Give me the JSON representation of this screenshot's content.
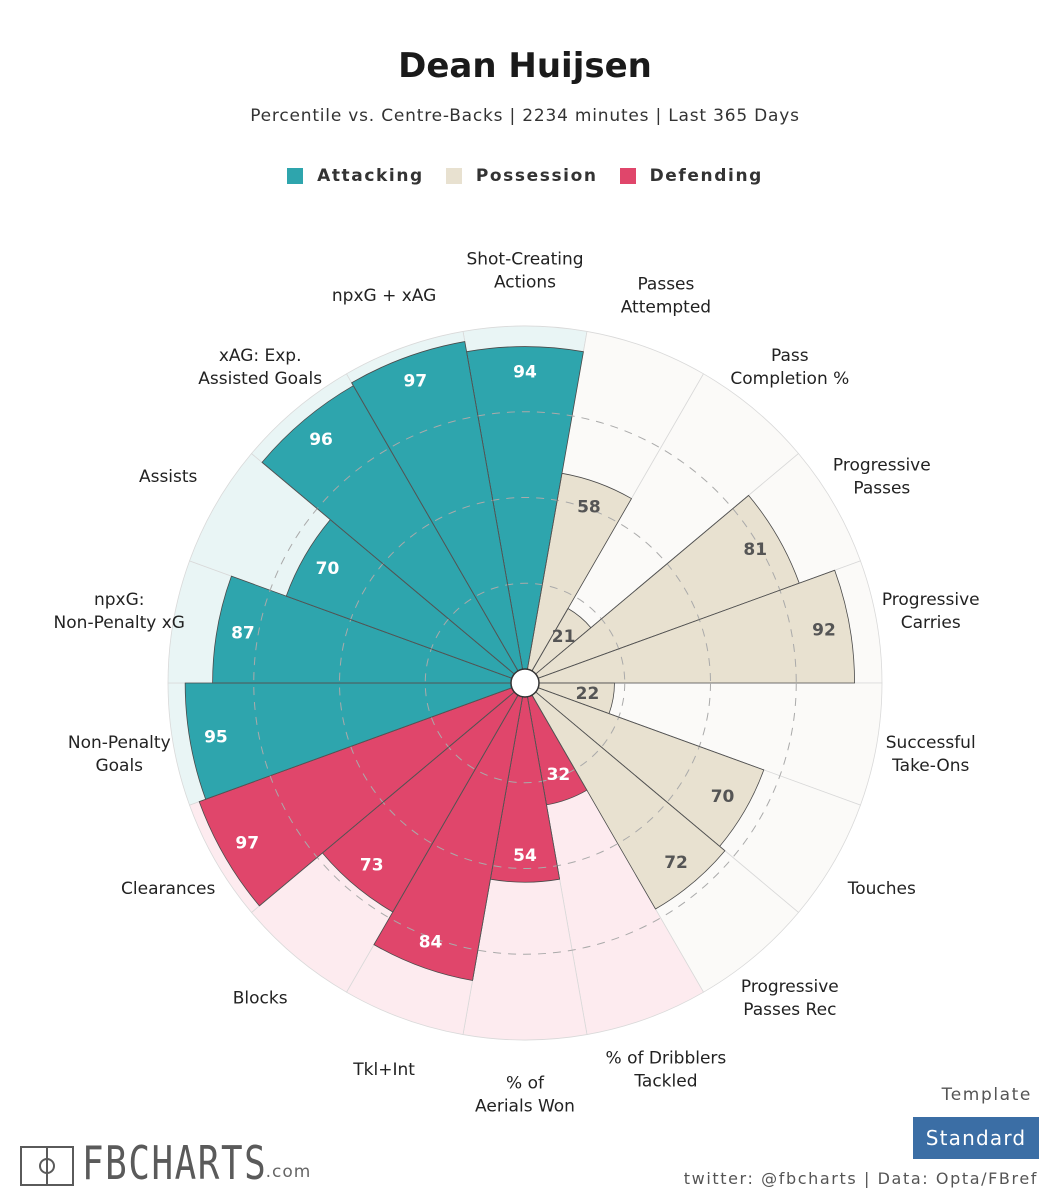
{
  "title": "Dean Huijsen",
  "subtitle": "Percentile vs. Centre-Backs | 2234 minutes | Last 365 Days",
  "legend": [
    {
      "label": "Attacking",
      "color": "#2ea5ad"
    },
    {
      "label": "Possession",
      "color": "#e8e1d0"
    },
    {
      "label": "Defending",
      "color": "#e0466b"
    }
  ],
  "chart_data": {
    "type": "pizza",
    "max_value": 100,
    "category_colors": {
      "Attacking": {
        "bar": "#2ea5ad",
        "background": "#e9f5f5"
      },
      "Possession": {
        "bar": "#e8e1d0",
        "background": "#fbfaf8"
      },
      "Defending": {
        "bar": "#e0466b",
        "background": "#fdebef"
      }
    },
    "metrics": [
      {
        "label": "Shot-Creating Actions",
        "value": 94,
        "category": "Attacking"
      },
      {
        "label": "Passes Attempted",
        "value": 58,
        "category": "Possession"
      },
      {
        "label": "Pass Completion %",
        "value": 21,
        "category": "Possession"
      },
      {
        "label": "Progressive Passes",
        "value": 81,
        "category": "Possession"
      },
      {
        "label": "Progressive Carries",
        "value": 92,
        "category": "Possession"
      },
      {
        "label": "Successful Take-Ons",
        "value": 22,
        "category": "Possession"
      },
      {
        "label": "Touches",
        "value": 70,
        "category": "Possession"
      },
      {
        "label": "Progressive Passes Rec",
        "value": 72,
        "category": "Possession"
      },
      {
        "label": "% of Dribblers Tackled",
        "value": 32,
        "category": "Defending"
      },
      {
        "label": "% of Aerials Won",
        "value": 54,
        "category": "Defending"
      },
      {
        "label": "Tkl+Int",
        "value": 84,
        "category": "Defending"
      },
      {
        "label": "Blocks",
        "value": 73,
        "category": "Defending"
      },
      {
        "label": "Clearances",
        "value": 97,
        "category": "Defending"
      },
      {
        "label": "Non-Penalty Goals",
        "value": 95,
        "category": "Attacking"
      },
      {
        "label": "npxG: Non-Penalty xG",
        "value": 87,
        "category": "Attacking"
      },
      {
        "label": "Assists",
        "value": 70,
        "category": "Attacking"
      },
      {
        "label": "xAG: Exp. Assisted Goals",
        "value": 96,
        "category": "Attacking"
      },
      {
        "label": "npxG + xAG",
        "value": 97,
        "category": "Attacking"
      }
    ]
  },
  "footer": {
    "logo_text": "FBCHARTS",
    "logo_suffix": ".com",
    "template_label": "Template",
    "template_value": "Standard",
    "credit": "twitter: @fbcharts | Data: Opta/FBref"
  }
}
